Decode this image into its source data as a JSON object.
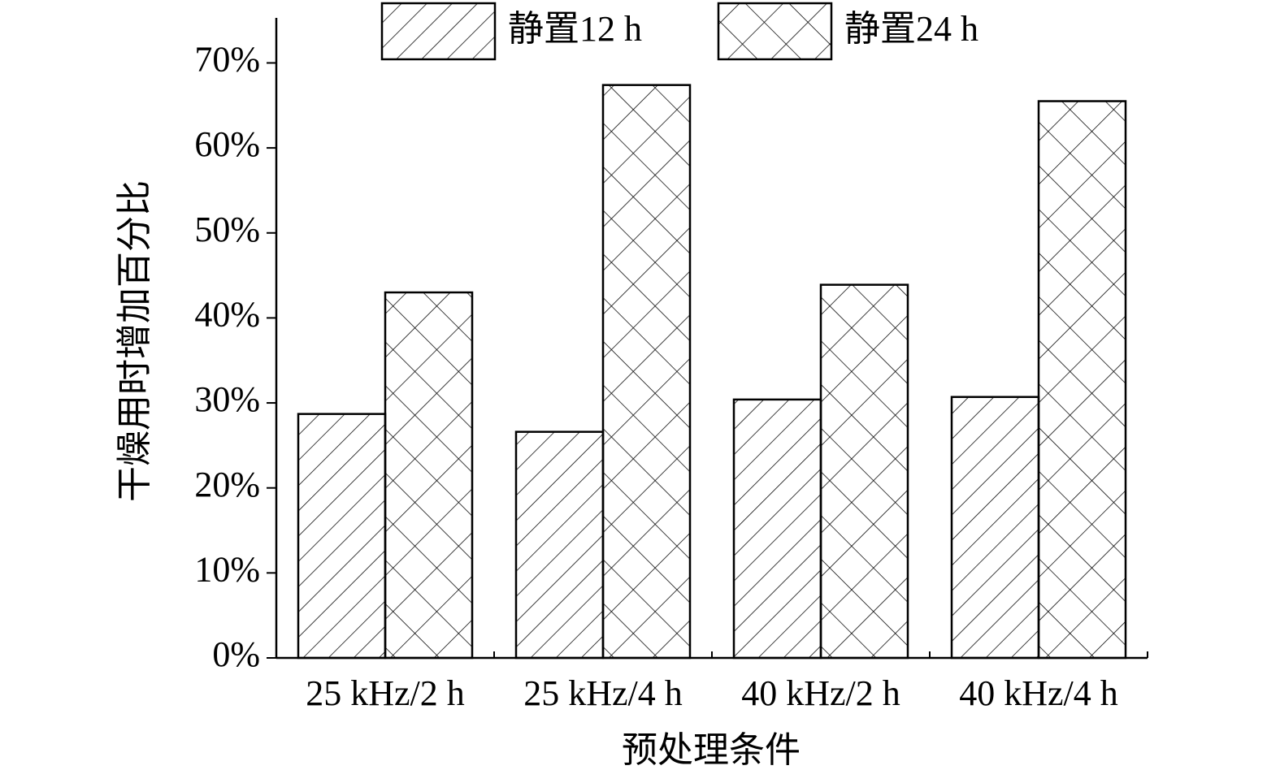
{
  "chart_data": {
    "type": "bar",
    "x_label": "预处理条件",
    "y_label": "干燥用时增加百分比",
    "categories": [
      "25 kHz/2 h",
      "25 kHz/4 h",
      "40 kHz/2 h",
      "40 kHz/4 h"
    ],
    "series": [
      {
        "name": "静置12 h",
        "color": "#000000",
        "pattern": "hatch",
        "values": [
          28.7,
          26.6,
          30.4,
          30.7
        ]
      },
      {
        "name": "静置24 h",
        "color": "#000000",
        "pattern": "crosshatch",
        "values": [
          43.0,
          67.4,
          43.9,
          65.5
        ]
      }
    ],
    "ylim": [
      0,
      75.3
    ],
    "yticks": [
      {
        "value": 0,
        "label": "0%"
      },
      {
        "value": 10,
        "label": "10%"
      },
      {
        "value": 20,
        "label": "20%"
      },
      {
        "value": 30,
        "label": "30%"
      },
      {
        "value": 40,
        "label": "40%"
      },
      {
        "value": 50,
        "label": "50%"
      },
      {
        "value": 60,
        "label": "60%"
      },
      {
        "value": 70,
        "label": "70%"
      }
    ],
    "grid": false,
    "legend": "top"
  }
}
